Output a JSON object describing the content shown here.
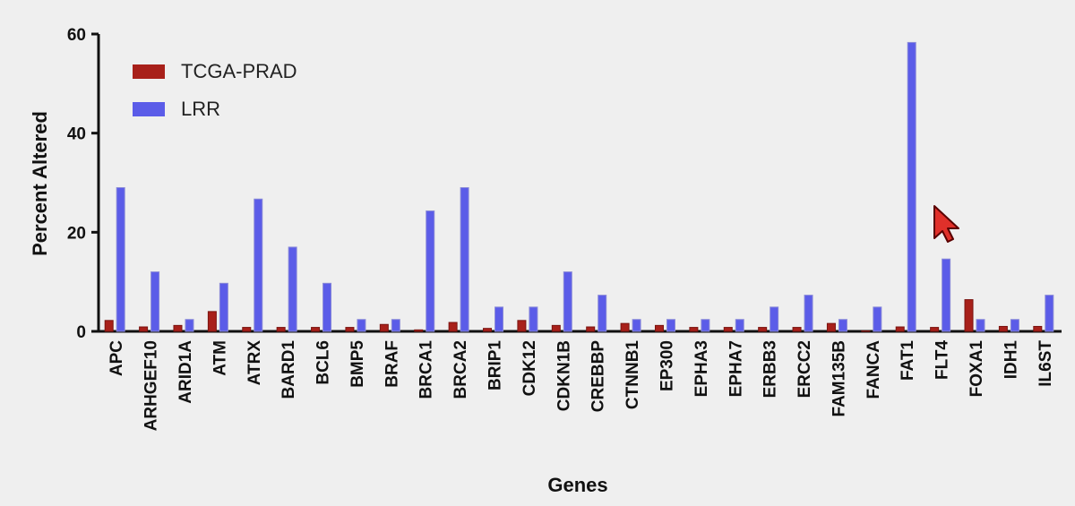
{
  "chart_data": {
    "type": "bar",
    "xlabel": "Genes",
    "ylabel": "Percent  Altered",
    "ylim": [
      0,
      60
    ],
    "yticks": [
      0,
      20,
      40,
      60
    ],
    "legend_position": "top-left",
    "categories": [
      "APC",
      "ARHGEF10",
      "ARID1A",
      "ATM",
      "ATRX",
      "BARD1",
      "BCL6",
      "BMP5",
      "BRAF",
      "BRCA1",
      "BRCA2",
      "BRIP1",
      "CDK12",
      "CDKN1B",
      "CREBBP",
      "CTNNB1",
      "EP300",
      "EPHA3",
      "EPHA7",
      "ERBB3",
      "ERCC2",
      "FAM135B",
      "FANCA",
      "FAT1",
      "FLT4",
      "FOXA1",
      "IDH1",
      "IL6ST"
    ],
    "series": [
      {
        "name": "TCGA-PRAD",
        "color": "#a8201a",
        "values": [
          2.2,
          0.9,
          1.2,
          4.0,
          0.8,
          0.8,
          0.8,
          0.8,
          1.4,
          0.3,
          1.8,
          0.6,
          2.2,
          1.2,
          0.9,
          1.6,
          1.2,
          0.8,
          0.8,
          0.8,
          0.8,
          1.6,
          0.1,
          0.9,
          0.8,
          6.4,
          1.0,
          1.0
        ]
      },
      {
        "name": "LRR",
        "color": "#5b5ce8",
        "values": [
          29,
          12,
          2.4,
          9.7,
          26.7,
          17,
          9.7,
          2.4,
          2.4,
          24.3,
          29,
          4.9,
          4.9,
          12,
          7.3,
          2.4,
          2.4,
          2.4,
          2.4,
          4.9,
          7.3,
          2.4,
          4.9,
          58.3,
          14.6,
          2.4,
          2.4,
          7.3
        ]
      }
    ],
    "annotation": "cursor-arrow-icon"
  }
}
